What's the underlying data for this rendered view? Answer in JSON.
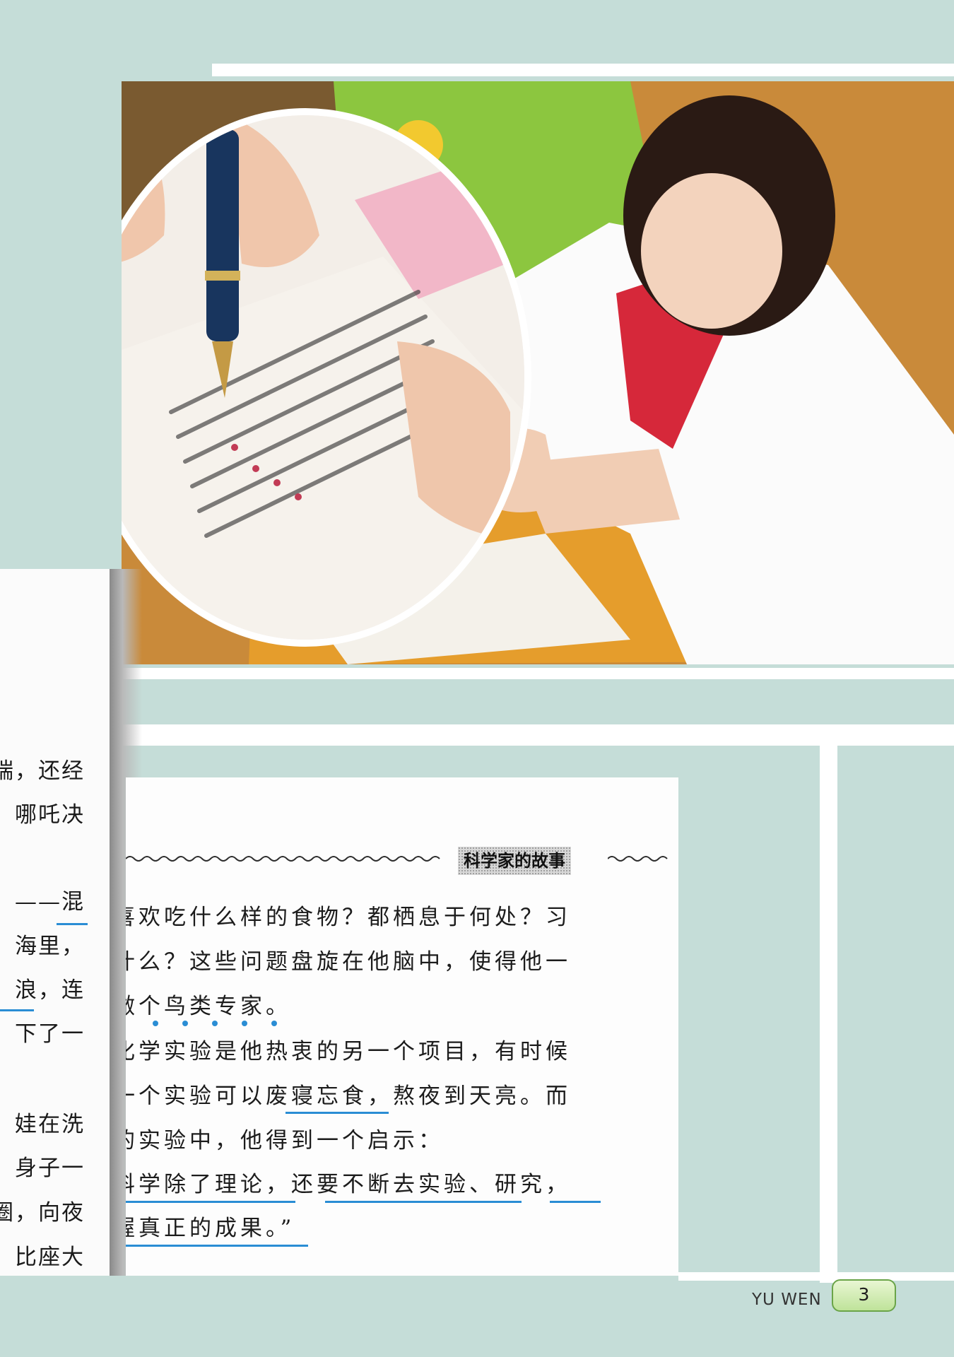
{
  "colors": {
    "background": "#c5ddd8",
    "accent_underline": "#2a8dd4",
    "page_tab": "#bfe39a"
  },
  "left_column": {
    "lines": [
      "端，还经",
      "哪吒决",
      "——混",
      "海里，",
      "浪，连",
      "下了一",
      "娃在洗",
      "身子一",
      "圈，向夜",
      "比座大"
    ]
  },
  "main_text": {
    "section_title": "科学家的故事",
    "lines": [
      "喜欢吃什么样的食物？都栖息于何处？习",
      "什么？这些问题盘旋在他脑中，使得他一",
      "做个鸟类专家。",
      "化学实验是他热衷的另一个项目，有时候",
      "一个实验可以废寝忘食，熬夜到天亮。而",
      "的实验中，他得到一个启示：",
      "科学除了理论，还要不断去实验、研究，",
      "握真正的成果。”"
    ]
  },
  "footer": {
    "label": "YU  WEN",
    "page_number": "3"
  }
}
